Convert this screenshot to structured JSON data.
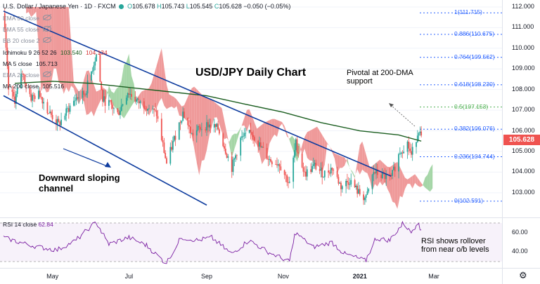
{
  "header": {
    "symbol": "U.S. Dollar / Japanese Yen · 1D · FXCM",
    "ohlc_prefix": "O",
    "open": "105.678",
    "high_prefix": "H",
    "high": "105.743",
    "low_prefix": "L",
    "low": "105.545",
    "close_prefix": "C",
    "close": "105.628",
    "change": "−0.050 (−0.05%)"
  },
  "indicators": [
    {
      "label": "EMA 50 close",
      "value": "",
      "visible": false
    },
    {
      "label": "EMA 55 close",
      "value": "",
      "visible": false
    },
    {
      "label": "BB 20 close 2",
      "value": "",
      "visible": false
    },
    {
      "label": "Ichimoku 9 26 52 26",
      "value": "103.540",
      "value2": "104.134",
      "visible": true
    },
    {
      "label": "MA 5 close",
      "value": "105.713",
      "visible": true
    },
    {
      "label": "EMA 21 close",
      "value": "",
      "visible": false
    },
    {
      "label": "MA 200 close",
      "value": "105.516",
      "visible": true
    }
  ],
  "current_price": "105.628",
  "annotations": {
    "title": "USD/JPY Daily Chart",
    "pivotal": "Pivotal at 200-DMA\nsupport",
    "downward": "Downward sloping\nchannel",
    "rsi_note": "RSI shows rollover\nfrom near o/b levels"
  },
  "rsi_legend": {
    "label": "RSI 14 close",
    "value": "62.84"
  },
  "colors": {
    "up": "#26a69a",
    "down": "#ef5350",
    "ma200": "#1b5e20",
    "channel": "#0d3b9e",
    "fib": "#2962ff",
    "rsi": "#7b1fa2",
    "cloud_bull": "#a5d6a7",
    "cloud_bear": "#ef9a9a"
  },
  "chart_data": {
    "type": "candlestick",
    "title": "USD/JPY Daily Chart",
    "x_ticks": [
      "May",
      "Jul",
      "Sep",
      "Nov",
      "2021",
      "Mar"
    ],
    "y_ticks": [
      "112.000",
      "111.000",
      "110.000",
      "109.000",
      "108.000",
      "107.000",
      "106.000",
      "105.000",
      "104.000",
      "103.000"
    ],
    "ylim": [
      102.4,
      112.1
    ],
    "rsi_ticks": [
      "60.00",
      "40.00"
    ],
    "fibonacci": [
      {
        "label": "1(111.715)",
        "value": 111.715
      },
      {
        "label": "0.886(110.675)",
        "value": 110.675
      },
      {
        "label": "0.764(109.562)",
        "value": 109.562
      },
      {
        "label": "0.618(108.230)",
        "value": 108.23
      },
      {
        "label": "0.5(107.153)",
        "value": 107.153
      },
      {
        "label": "0.382(106.076)",
        "value": 106.076
      },
      {
        "label": "0.236(104.744)",
        "value": 104.744
      },
      {
        "label": "0(102.591)",
        "value": 102.591
      }
    ],
    "price_path": [
      {
        "x": "2020-03-23",
        "y": 111.7
      },
      {
        "x": "2020-03-27",
        "y": 108.0
      },
      {
        "x": "2020-04-01",
        "y": 107.5
      },
      {
        "x": "2020-04-07",
        "y": 108.8
      },
      {
        "x": "2020-04-14",
        "y": 107.6
      },
      {
        "x": "2020-04-21",
        "y": 107.8
      },
      {
        "x": "2020-04-28",
        "y": 106.9
      },
      {
        "x": "2020-05-06",
        "y": 106.3
      },
      {
        "x": "2020-05-13",
        "y": 107.0
      },
      {
        "x": "2020-05-20",
        "y": 107.6
      },
      {
        "x": "2020-05-27",
        "y": 107.8
      },
      {
        "x": "2020-06-05",
        "y": 109.7
      },
      {
        "x": "2020-06-10",
        "y": 107.5
      },
      {
        "x": "2020-06-16",
        "y": 107.3
      },
      {
        "x": "2020-06-22",
        "y": 106.8
      },
      {
        "x": "2020-06-30",
        "y": 107.9
      },
      {
        "x": "2020-07-08",
        "y": 107.4
      },
      {
        "x": "2020-07-15",
        "y": 107.2
      },
      {
        "x": "2020-07-23",
        "y": 106.8
      },
      {
        "x": "2020-07-31",
        "y": 104.4
      },
      {
        "x": "2020-08-06",
        "y": 105.6
      },
      {
        "x": "2020-08-13",
        "y": 106.9
      },
      {
        "x": "2020-08-20",
        "y": 105.8
      },
      {
        "x": "2020-08-26",
        "y": 106.1
      },
      {
        "x": "2020-09-02",
        "y": 106.3
      },
      {
        "x": "2020-09-10",
        "y": 106.1
      },
      {
        "x": "2020-09-21",
        "y": 104.2
      },
      {
        "x": "2020-09-28",
        "y": 105.6
      },
      {
        "x": "2020-10-07",
        "y": 105.9
      },
      {
        "x": "2020-10-14",
        "y": 105.2
      },
      {
        "x": "2020-10-21",
        "y": 104.6
      },
      {
        "x": "2020-10-29",
        "y": 104.4
      },
      {
        "x": "2020-11-06",
        "y": 103.4
      },
      {
        "x": "2020-11-11",
        "y": 105.4
      },
      {
        "x": "2020-11-18",
        "y": 103.9
      },
      {
        "x": "2020-11-26",
        "y": 104.3
      },
      {
        "x": "2020-12-03",
        "y": 103.9
      },
      {
        "x": "2020-12-10",
        "y": 104.2
      },
      {
        "x": "2020-12-17",
        "y": 103.3
      },
      {
        "x": "2020-12-24",
        "y": 103.6
      },
      {
        "x": "2020-12-31",
        "y": 103.0
      },
      {
        "x": "2021-01-06",
        "y": 102.7
      },
      {
        "x": "2021-01-12",
        "y": 104.0
      },
      {
        "x": "2021-01-19",
        "y": 103.8
      },
      {
        "x": "2021-01-26",
        "y": 103.7
      },
      {
        "x": "2021-02-02",
        "y": 105.0
      },
      {
        "x": "2021-02-08",
        "y": 105.4
      },
      {
        "x": "2021-02-11",
        "y": 104.8
      },
      {
        "x": "2021-02-17",
        "y": 106.1
      },
      {
        "x": "2021-02-19",
        "y": 105.6
      }
    ],
    "series": [
      {
        "name": "MA 200 close",
        "points": [
          {
            "x": "2020-04-01",
            "y": 108.3
          },
          {
            "x": "2020-05-01",
            "y": 108.4
          },
          {
            "x": "2020-06-01",
            "y": 108.3
          },
          {
            "x": "2020-07-01",
            "y": 108.1
          },
          {
            "x": "2020-08-01",
            "y": 107.9
          },
          {
            "x": "2020-09-01",
            "y": 107.7
          },
          {
            "x": "2020-10-01",
            "y": 107.3
          },
          {
            "x": "2020-11-01",
            "y": 106.9
          },
          {
            "x": "2020-12-01",
            "y": 106.4
          },
          {
            "x": "2021-01-01",
            "y": 106.0
          },
          {
            "x": "2021-02-01",
            "y": 105.8
          },
          {
            "x": "2021-02-19",
            "y": 105.5
          }
        ]
      },
      {
        "name": "RSI 14 close",
        "points": [
          {
            "x": "2020-03-23",
            "y": 55
          },
          {
            "x": "2020-04-05",
            "y": 50
          },
          {
            "x": "2020-04-20",
            "y": 45
          },
          {
            "x": "2020-05-05",
            "y": 42
          },
          {
            "x": "2020-05-20",
            "y": 52
          },
          {
            "x": "2020-06-05",
            "y": 71
          },
          {
            "x": "2020-06-15",
            "y": 48
          },
          {
            "x": "2020-07-01",
            "y": 55
          },
          {
            "x": "2020-07-15",
            "y": 47
          },
          {
            "x": "2020-07-31",
            "y": 28
          },
          {
            "x": "2020-08-12",
            "y": 55
          },
          {
            "x": "2020-08-25",
            "y": 52
          },
          {
            "x": "2020-09-05",
            "y": 55
          },
          {
            "x": "2020-09-21",
            "y": 38
          },
          {
            "x": "2020-10-05",
            "y": 52
          },
          {
            "x": "2020-10-20",
            "y": 40
          },
          {
            "x": "2020-11-06",
            "y": 30
          },
          {
            "x": "2020-11-11",
            "y": 60
          },
          {
            "x": "2020-11-25",
            "y": 45
          },
          {
            "x": "2020-12-10",
            "y": 50
          },
          {
            "x": "2020-12-20",
            "y": 38
          },
          {
            "x": "2021-01-06",
            "y": 31
          },
          {
            "x": "2021-01-14",
            "y": 54
          },
          {
            "x": "2021-01-25",
            "y": 52
          },
          {
            "x": "2021-02-05",
            "y": 70
          },
          {
            "x": "2021-02-11",
            "y": 60
          },
          {
            "x": "2021-02-17",
            "y": 72
          },
          {
            "x": "2021-02-19",
            "y": 62.84
          }
        ]
      }
    ],
    "channel": {
      "upper": [
        {
          "x": "2020-03-23",
          "y": 111.8
        },
        {
          "x": "2021-01-26",
          "y": 103.8
        }
      ],
      "lower": [
        {
          "x": "2020-03-23",
          "y": 107.7
        },
        {
          "x": "2020-09-01",
          "y": 102.4
        }
      ]
    }
  }
}
